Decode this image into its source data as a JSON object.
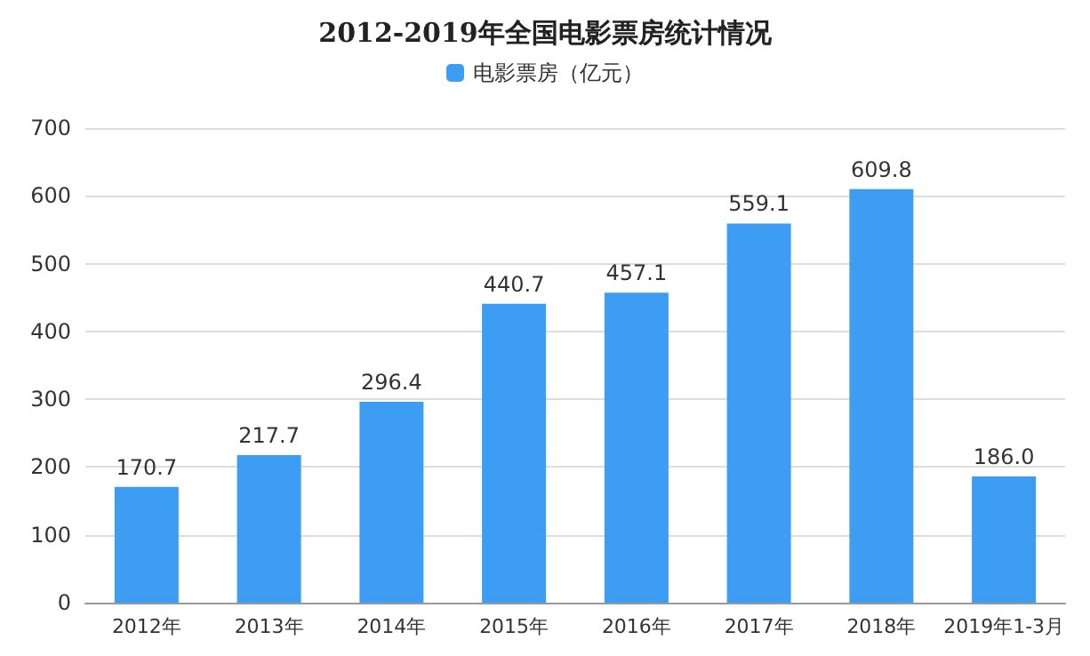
{
  "chart_data": {
    "type": "bar",
    "title": "2012-2019年全国电影票房统计情况",
    "categories": [
      "2012年",
      "2013年",
      "2014年",
      "2015年",
      "2016年",
      "2017年",
      "2018年",
      "2019年1-3月"
    ],
    "series": [
      {
        "name": "电影票房（亿元）",
        "color": "#3d9df2",
        "values": [
          170.7,
          217.7,
          296.4,
          440.7,
          457.1,
          559.1,
          609.8,
          186.0
        ],
        "value_labels": [
          "170.7",
          "217.7",
          "296.4",
          "440.7",
          "457.1",
          "559.1",
          "609.8",
          "186.0"
        ]
      }
    ],
    "ylim": [
      0,
      700
    ],
    "yticks": [
      0,
      100,
      200,
      300,
      400,
      500,
      600,
      700
    ],
    "grid": "y",
    "legend": "top"
  }
}
